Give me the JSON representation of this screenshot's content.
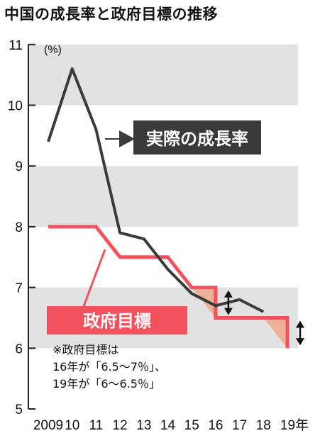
{
  "title": "中国の成長率と政府目標の推移",
  "colors": {
    "actual": "#3a3a3a",
    "target": "#f2515e",
    "band": "#e2e2e2",
    "gap_fill": "#f0a88a",
    "arrow": "#111111",
    "axis": "#222222"
  },
  "chart_data": {
    "type": "line",
    "title": "中国の成長率と政府目標の推移",
    "unit": "(%)",
    "ylim": [
      5,
      11
    ],
    "yticks": [
      5,
      6,
      7,
      8,
      9,
      10,
      11
    ],
    "x_tick_labels": [
      "2009",
      "10",
      "11",
      "12",
      "13",
      "14",
      "15",
      "16",
      "17",
      "18",
      "19年"
    ],
    "x": [
      2009,
      2010,
      2011,
      2012,
      2013,
      2014,
      2015,
      2016,
      2017,
      2018,
      2019
    ],
    "bands": [
      [
        6,
        7
      ],
      [
        8,
        9
      ],
      [
        10,
        11
      ]
    ],
    "series": [
      {
        "name": "実際の成長率",
        "style": "thin",
        "points": [
          [
            2009,
            9.4
          ],
          [
            2010,
            10.6
          ],
          [
            2011,
            9.6
          ],
          [
            2012,
            7.9
          ],
          [
            2013,
            7.8
          ],
          [
            2014,
            7.3
          ],
          [
            2015,
            6.9
          ],
          [
            2016,
            6.7
          ],
          [
            2017,
            6.8
          ],
          [
            2018,
            6.6
          ]
        ]
      },
      {
        "name": "政府目標",
        "style": "step",
        "points": [
          [
            2009,
            8.0
          ],
          [
            2011,
            8.0
          ],
          [
            2012,
            7.5
          ],
          [
            2014,
            7.5
          ],
          [
            2015,
            7.0
          ],
          [
            2016,
            7.0
          ],
          [
            2016,
            6.5
          ],
          [
            2019,
            6.5
          ]
        ],
        "range_points": [
          [
            2016,
            7.0
          ],
          [
            2016,
            6.5
          ],
          [
            2019,
            6.5
          ],
          [
            2019,
            6.0
          ]
        ]
      }
    ],
    "gap_regions": [
      [
        [
          2015,
          7.0
        ],
        [
          2016,
          7.0
        ],
        [
          2016,
          6.5
        ]
      ],
      [
        [
          2018,
          6.5
        ],
        [
          2019,
          6.5
        ],
        [
          2019,
          6.0
        ]
      ]
    ],
    "range_arrows": [
      {
        "x": 2016,
        "from": 6.5,
        "to": 7.0
      },
      {
        "x": 2019,
        "from": 6.0,
        "to": 6.5
      }
    ],
    "callouts": {
      "actual": "実際の成長率",
      "target": "政府目標"
    },
    "note": [
      "※政府目標は",
      "16年が「6.5～7％」、",
      "19年が「6～6.5％」"
    ]
  }
}
